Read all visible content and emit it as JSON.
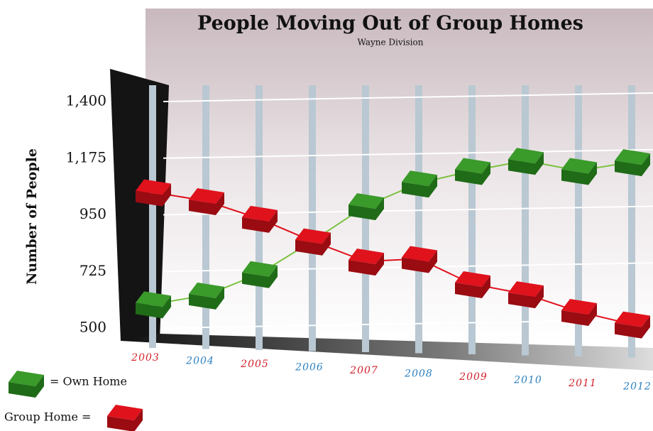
{
  "chart_data": {
    "type": "line",
    "title": "People Moving Out of Group Homes",
    "subtitle": "Wayne Division",
    "y_label": "Number of People",
    "categories": [
      "2003",
      "2004",
      "2005",
      "2006",
      "2007",
      "2008",
      "2009",
      "2010",
      "2011",
      "2012"
    ],
    "series": [
      {
        "name": "= Own Home",
        "color": "#3a9a2a",
        "values": [
          595,
          630,
          715,
          845,
          985,
          1075,
          1125,
          1165,
          1125,
          1160
        ]
      },
      {
        "name": "Group Home =",
        "color": "#e0121c",
        "values": [
          1040,
          1005,
          935,
          845,
          765,
          775,
          675,
          635,
          565,
          515
        ]
      }
    ],
    "ylim": [
      500,
      1400
    ],
    "yticks": [
      500,
      725,
      950,
      {
        "value": 1175,
        "label": "1,175"
      },
      {
        "value": 1400,
        "label": "1,400"
      }
    ],
    "grid": true
  }
}
